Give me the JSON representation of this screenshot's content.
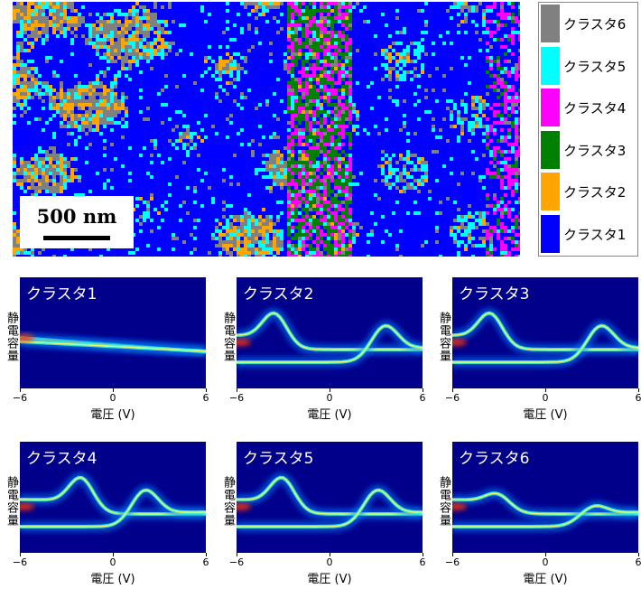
{
  "legend": {
    "items": [
      {
        "label": "クラスタ6",
        "color": "#808080"
      },
      {
        "label": "クラスタ5",
        "color": "#00ffff"
      },
      {
        "label": "クラスタ4",
        "color": "#ff00ff"
      },
      {
        "label": "クラスタ3",
        "color": "#008000"
      },
      {
        "label": "クラスタ2",
        "color": "#ffa500"
      },
      {
        "label": "クラスタ1",
        "color": "#0000ff"
      }
    ]
  },
  "scale_bar": {
    "label": "500 nm"
  },
  "chart_data": [
    {
      "type": "heatmap",
      "title": "",
      "xlabel": "",
      "ylabel": "",
      "note": "cluster map",
      "categories": [
        "クラスタ1",
        "クラスタ2",
        "クラスタ3",
        "クラスタ4",
        "クラスタ5",
        "クラスタ6"
      ],
      "colors": [
        "#0000ff",
        "#ffa500",
        "#008000",
        "#ff00ff",
        "#00ffff",
        "#808080"
      ]
    },
    {
      "type": "heatmap",
      "title": "クラスタ1",
      "xlabel": "電圧 (V)",
      "ylabel": "静電容量",
      "x_ticks": [
        "−6",
        "0",
        "6"
      ],
      "xlim": [
        -6,
        6
      ],
      "shape": "flat"
    },
    {
      "type": "heatmap",
      "title": "クラスタ2",
      "xlabel": "電圧 (V)",
      "ylabel": "静電容量",
      "x_ticks": [
        "−6",
        "0",
        "6"
      ],
      "xlim": [
        -6,
        6
      ],
      "shape": "loop",
      "forward_peak_V": -3.5,
      "reverse_peak_V": 3.5
    },
    {
      "type": "heatmap",
      "title": "クラスタ3",
      "xlabel": "電圧 (V)",
      "ylabel": "静電容量",
      "x_ticks": [
        "−6",
        "0",
        "6"
      ],
      "xlim": [
        -6,
        6
      ],
      "shape": "loop",
      "forward_peak_V": -3.5,
      "reverse_peak_V": 3.5
    },
    {
      "type": "heatmap",
      "title": "クラスタ4",
      "xlabel": "電圧 (V)",
      "ylabel": "静電容量",
      "x_ticks": [
        "−6",
        "0",
        "6"
      ],
      "xlim": [
        -6,
        6
      ],
      "shape": "loop",
      "forward_peak_V": -2.0,
      "reverse_peak_V": 2.0
    },
    {
      "type": "heatmap",
      "title": "クラスタ5",
      "xlabel": "電圧 (V)",
      "ylabel": "静電容量",
      "x_ticks": [
        "−6",
        "0",
        "6"
      ],
      "xlim": [
        -6,
        6
      ],
      "shape": "loop",
      "forward_peak_V": -3.0,
      "reverse_peak_V": 3.0
    },
    {
      "type": "heatmap",
      "title": "クラスタ6",
      "xlabel": "電圧 (V)",
      "ylabel": "静電容量",
      "x_ticks": [
        "−6",
        "0",
        "6"
      ],
      "xlim": [
        -6,
        6
      ],
      "shape": "weak-loop",
      "forward_peak_V": -3.0,
      "reverse_peak_V": 3.0
    }
  ]
}
